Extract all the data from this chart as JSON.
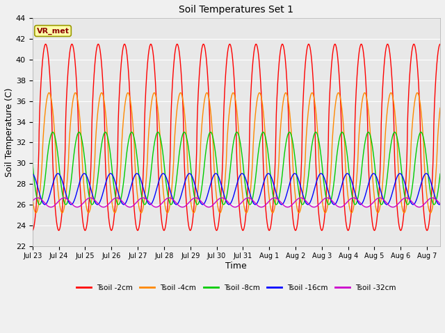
{
  "title": "Soil Temperatures Set 1",
  "xlabel": "Time",
  "ylabel": "Soil Temperature (C)",
  "ylim": [
    22,
    44
  ],
  "n_days": 15.5,
  "background_color": "#e8e8e8",
  "fig_color": "#f0f0f0",
  "colors": {
    "2cm": "#ff0000",
    "4cm": "#ff8800",
    "8cm": "#00cc00",
    "16cm": "#0000ff",
    "32cm": "#cc00cc"
  },
  "legend_labels": [
    "Tsoil -2cm",
    "Tsoil -4cm",
    "Tsoil -8cm",
    "Tsoil -16cm",
    "Tsoil -32cm"
  ],
  "annotation": "VR_met",
  "tick_labels": [
    "Jul 23",
    "Jul 24",
    "Jul 25",
    "Jul 26",
    "Jul 27",
    "Jul 28",
    "Jul 29",
    "Jul 30",
    "Jul 31",
    "Aug 1",
    "Aug 2",
    "Aug 3",
    "Aug 4",
    "Aug 5",
    "Aug 6",
    "Aug 7"
  ]
}
